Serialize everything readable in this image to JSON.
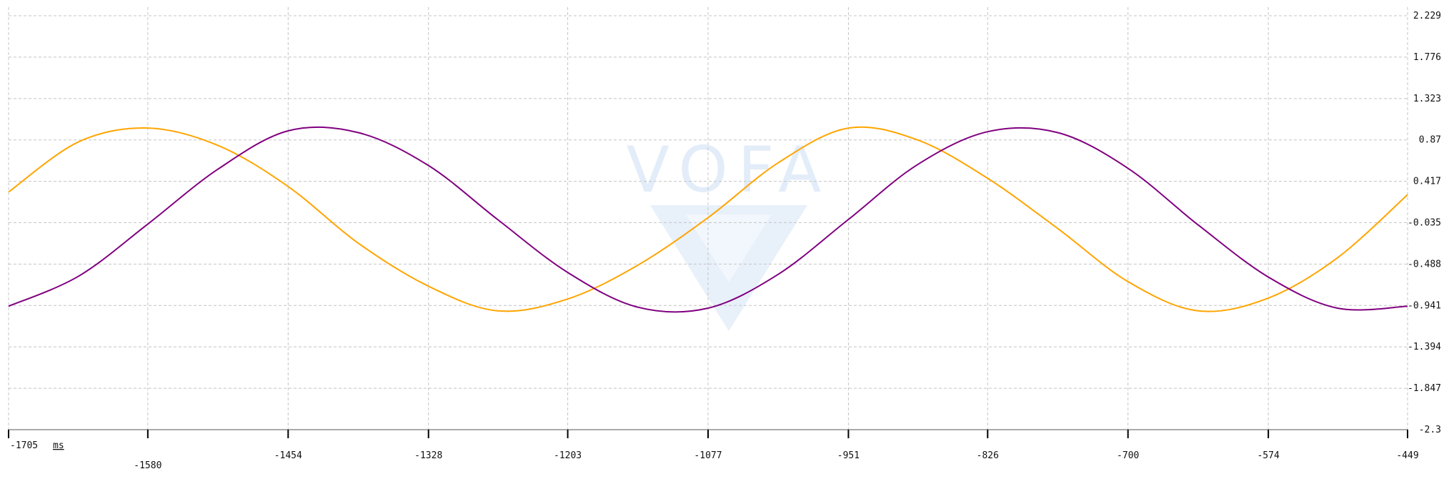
{
  "chart_data": {
    "type": "line",
    "x_unit_label": "ms",
    "xlim": [
      -1705,
      -449
    ],
    "ylim": [
      -2.3,
      2.229
    ],
    "x_tick_labels": [
      "-1705",
      "-1580",
      "-1454",
      "-1328",
      "-1203",
      "-1077",
      "-951",
      "-826",
      "-700",
      "-574",
      "-449"
    ],
    "y_tick_labels": [
      "2.229",
      "1.776",
      "1.323",
      "0.87",
      "0.417",
      "-0.035",
      "-0.488",
      "-0.941",
      "-1.394",
      "-1.847",
      "-2.3"
    ],
    "grid": true,
    "watermark": "VOFA",
    "series": [
      {
        "color": "#FFA500",
        "x": [
          -1705,
          -1642,
          -1580,
          -1517,
          -1454,
          -1391,
          -1328,
          -1266,
          -1203,
          -1140,
          -1077,
          -1014,
          -951,
          -889,
          -826,
          -763,
          -700,
          -637,
          -574,
          -512,
          -449
        ],
        "y": [
          0.3,
          0.85,
          1.0,
          0.81,
          0.36,
          -0.26,
          -0.73,
          -1.0,
          -0.87,
          -0.5,
          0.02,
          0.62,
          1.0,
          0.87,
          0.45,
          -0.1,
          -0.68,
          -1.0,
          -0.86,
          -0.42,
          0.27
        ]
      },
      {
        "color": "#800080",
        "x": [
          -1705,
          -1642,
          -1580,
          -1517,
          -1454,
          -1391,
          -1328,
          -1266,
          -1203,
          -1140,
          -1077,
          -1014,
          -951,
          -889,
          -826,
          -763,
          -700,
          -637,
          -574,
          -512,
          -449
        ],
        "y": [
          -0.95,
          -0.62,
          -0.05,
          0.55,
          0.97,
          0.95,
          0.59,
          0.0,
          -0.58,
          -0.96,
          -0.97,
          -0.6,
          0.0,
          0.6,
          0.96,
          0.95,
          0.56,
          -0.06,
          -0.63,
          -0.97,
          -0.95
        ]
      }
    ]
  }
}
